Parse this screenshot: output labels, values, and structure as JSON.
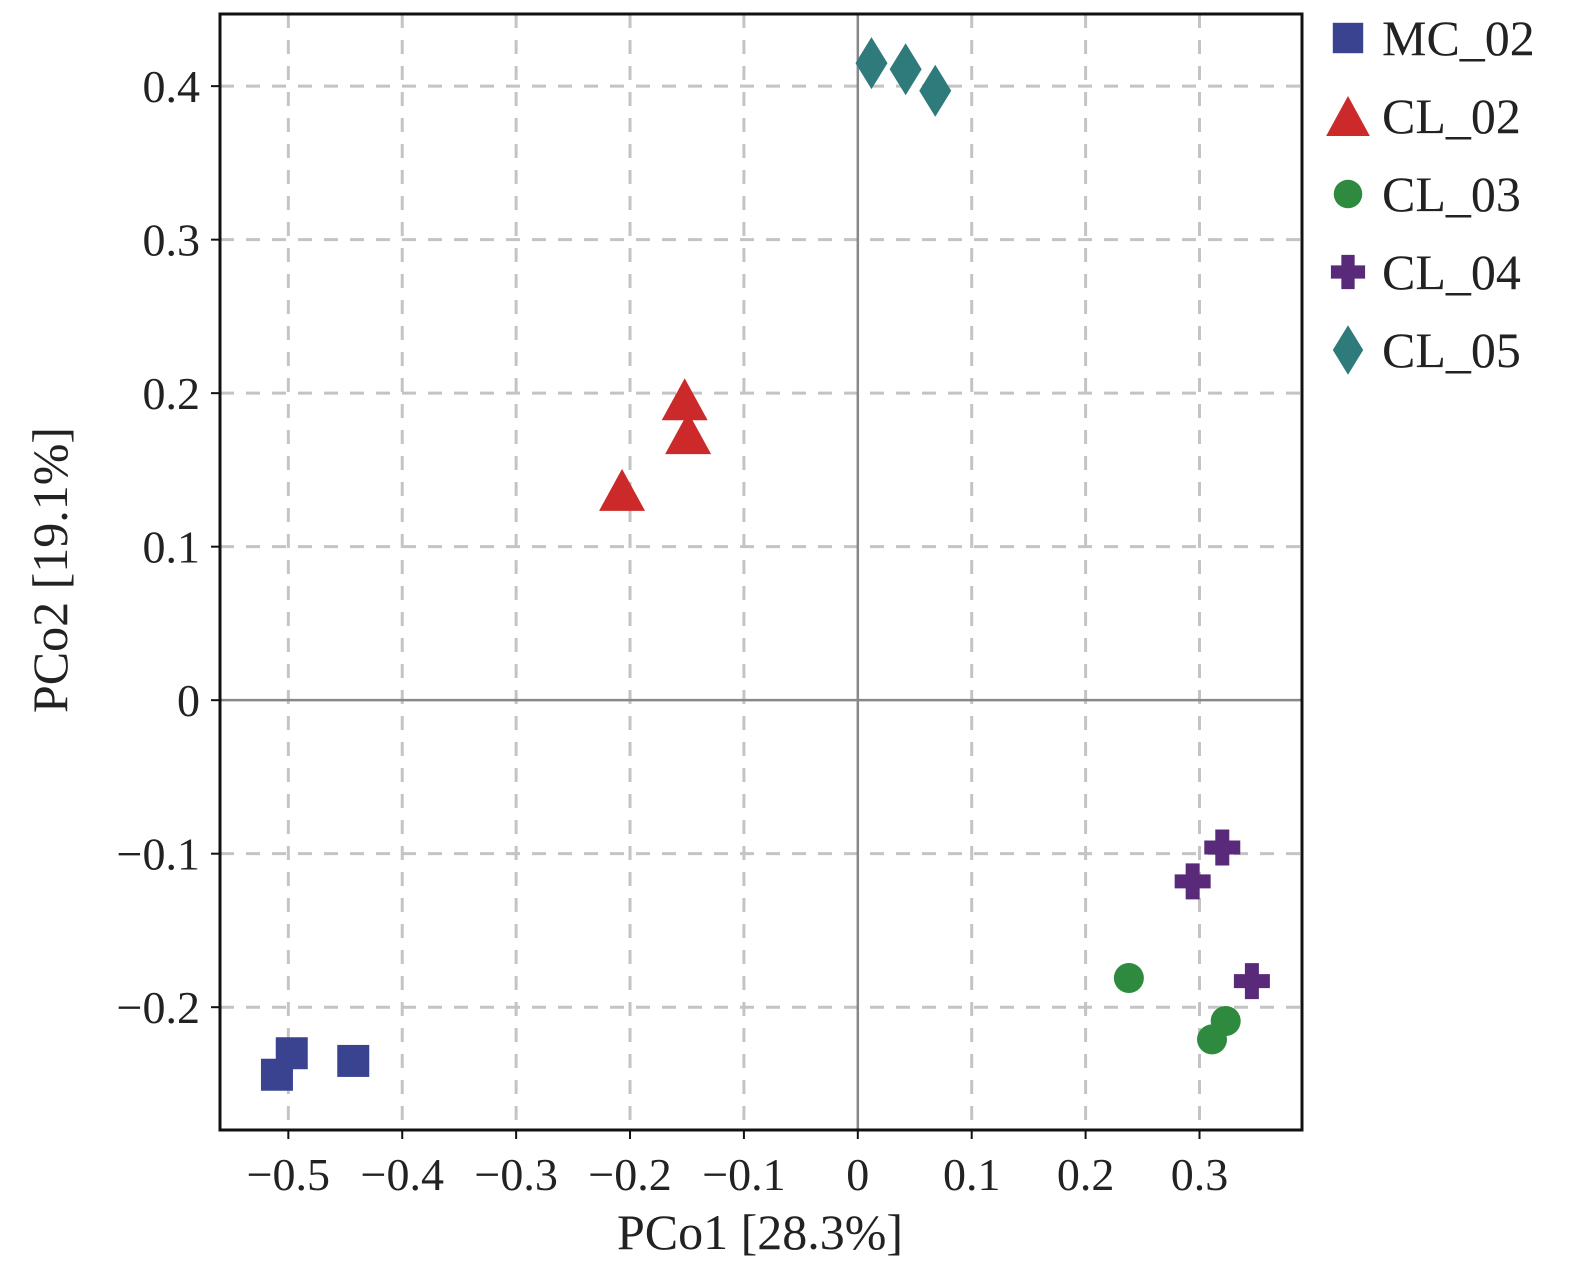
{
  "chart_data": {
    "type": "scatter",
    "xlabel": "PCo1 [28.3%]",
    "ylabel": "PCo2 [19.1%]",
    "xlim": [
      -0.56,
      0.39
    ],
    "ylim": [
      -0.28,
      0.447
    ],
    "x_ticks": [
      -0.5,
      -0.4,
      -0.3,
      -0.2,
      -0.1,
      0,
      0.1,
      0.2,
      0.3
    ],
    "x_tick_labels": [
      "−0.5",
      "−0.4",
      "−0.3",
      "−0.2",
      "−0.1",
      "0",
      "0.1",
      "0.2",
      "0.3"
    ],
    "y_ticks": [
      -0.2,
      -0.1,
      0,
      0.1,
      0.2,
      0.3,
      0.4
    ],
    "y_tick_labels": [
      "−0.2",
      "−0.1",
      "0",
      "0.1",
      "0.2",
      "0.3",
      "0.4"
    ],
    "grid": true,
    "grid_style": "dashed",
    "zero_lines": true,
    "legend_position": "outside right, top",
    "series": [
      {
        "name": "MC_02",
        "marker": "square",
        "color": "#3a4390",
        "points": [
          [
            -0.51,
            -0.244
          ],
          [
            -0.497,
            -0.23
          ],
          [
            -0.443,
            -0.235
          ]
        ]
      },
      {
        "name": "CL_02",
        "marker": "triangle",
        "color": "#cc2a2a",
        "points": [
          [
            -0.152,
            0.196
          ],
          [
            -0.149,
            0.174
          ],
          [
            -0.207,
            0.137
          ]
        ]
      },
      {
        "name": "CL_03",
        "marker": "circle",
        "color": "#2e8a3e",
        "points": [
          [
            0.238,
            -0.181
          ],
          [
            0.323,
            -0.209
          ],
          [
            0.311,
            -0.221
          ]
        ]
      },
      {
        "name": "CL_04",
        "marker": "plus",
        "color": "#5a2a7a",
        "points": [
          [
            0.32,
            -0.096
          ],
          [
            0.294,
            -0.118
          ],
          [
            0.346,
            -0.183
          ]
        ]
      },
      {
        "name": "CL_05",
        "marker": "diamond",
        "color": "#2f7a7a",
        "points": [
          [
            0.012,
            0.415
          ],
          [
            0.042,
            0.411
          ],
          [
            0.068,
            0.397
          ]
        ]
      }
    ]
  }
}
